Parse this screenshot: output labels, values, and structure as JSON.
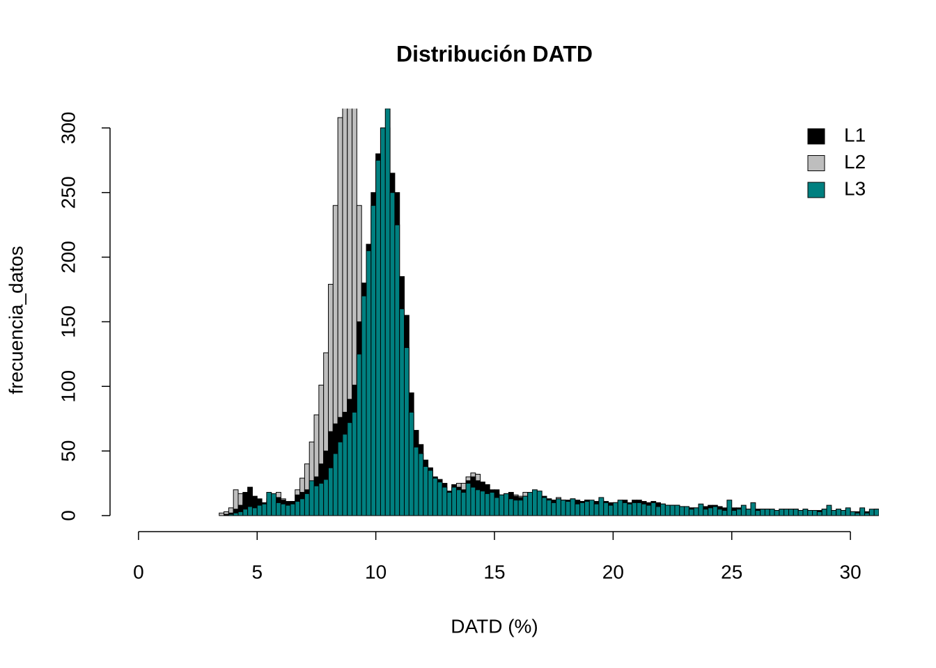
{
  "chart_data": {
    "type": "histogram",
    "title": "Distribución DATD",
    "xlabel": "DATD (%)",
    "ylabel": "frecuencia_datos",
    "xlim": [
      -1.2,
      31.2
    ],
    "ylim": [
      -12.4,
      315
    ],
    "xticks": [
      0,
      5,
      10,
      15,
      20,
      25,
      30
    ],
    "yticks": [
      0,
      50,
      100,
      150,
      200,
      250,
      300
    ],
    "grid": false,
    "legend": "topright",
    "bins": [
      3.4,
      3.6,
      3.8,
      4,
      4.2,
      4.4,
      4.6,
      4.8,
      5,
      5.2,
      5.4,
      5.6,
      5.8,
      6,
      6.2,
      6.4,
      6.6,
      6.8,
      7,
      7.2,
      7.4,
      7.6,
      7.8,
      8,
      8.2,
      8.4,
      8.6,
      8.8,
      9,
      9.2,
      9.4,
      9.6,
      9.8,
      10,
      10.2,
      10.4,
      10.6,
      10.8,
      11,
      11.2,
      11.4,
      11.6,
      11.8,
      12,
      12.2,
      12.4,
      12.6,
      12.8,
      13,
      13.2,
      13.4,
      13.6,
      13.8,
      14,
      14.2,
      14.4,
      14.6,
      14.8,
      15,
      15.2,
      15.4,
      15.6,
      15.8,
      16,
      16.2,
      16.4,
      16.6,
      16.8,
      17,
      17.2,
      17.4,
      17.6,
      17.8,
      18,
      18.2,
      18.4,
      18.6,
      18.8,
      19,
      19.2,
      19.4,
      19.6,
      19.8,
      20,
      20.2,
      20.4,
      20.6,
      20.8,
      21,
      21.2,
      21.4,
      21.6,
      21.8,
      22,
      22.2,
      22.4,
      22.6,
      22.8,
      23,
      23.2,
      23.4,
      23.6,
      23.8,
      24,
      24.2,
      24.4,
      24.6,
      24.8,
      25,
      25.2,
      25.4,
      25.6,
      25.8,
      26,
      26.2,
      26.4,
      26.6,
      26.8,
      27,
      27.2,
      27.4,
      27.6,
      27.8,
      28,
      28.2,
      28.4,
      28.6,
      28.8,
      29,
      29.2,
      29.4,
      29.6,
      29.8,
      30,
      30.2,
      30.4,
      30.6,
      30.8,
      31,
      31.2
    ],
    "series": [
      {
        "name": "L1",
        "color": "#000000",
        "values": [
          0,
          1,
          2,
          5,
          8,
          18,
          22,
          15,
          13,
          10,
          11,
          12,
          14,
          12,
          11,
          11,
          16,
          18,
          20,
          25,
          30,
          40,
          50,
          65,
          71,
          76,
          80,
          90,
          101,
          150,
          180,
          210,
          250,
          280,
          300,
          300,
          265,
          250,
          185,
          155,
          95,
          66,
          55,
          43,
          37,
          30,
          28,
          25,
          19,
          24,
          22,
          20,
          27,
          30,
          27,
          26,
          24,
          20,
          20,
          16,
          17,
          18,
          15,
          14,
          15,
          15,
          14,
          15,
          15,
          13,
          12,
          12,
          12,
          12,
          13,
          12,
          11,
          12,
          11,
          11,
          12,
          11,
          10,
          10,
          11,
          12,
          10,
          12,
          12,
          11,
          10,
          11,
          10,
          9,
          8,
          8,
          8,
          7,
          7,
          6,
          6,
          8,
          7,
          8,
          8,
          7,
          6,
          6,
          6,
          6,
          6,
          5,
          5,
          5,
          5,
          5,
          5,
          4,
          5,
          5,
          5,
          5,
          4,
          5,
          4,
          4,
          4,
          5,
          6,
          4,
          5,
          4,
          5,
          3,
          3,
          5,
          3,
          4,
          5
        ]
      },
      {
        "name": "L2",
        "color": "#bebebe",
        "values": [
          2,
          3,
          6,
          20,
          17,
          10,
          8,
          12,
          10,
          9,
          13,
          15,
          18,
          13,
          9,
          11,
          20,
          29,
          40,
          57,
          78,
          101,
          126,
          179,
          240,
          308,
          330,
          340,
          330,
          240,
          155,
          110,
          80,
          60,
          40,
          30,
          20,
          14,
          10,
          8,
          6,
          5,
          4,
          3,
          3,
          3,
          3,
          3,
          3,
          4,
          25,
          25,
          30,
          33,
          32,
          20,
          18,
          16,
          17,
          15,
          14,
          13,
          16,
          15,
          18,
          17,
          16,
          15,
          14,
          13,
          12,
          14,
          12,
          11,
          12,
          10,
          11,
          12,
          10,
          10,
          11,
          9,
          9,
          10,
          10,
          9,
          8,
          9,
          10,
          9,
          9,
          8,
          9,
          8,
          8,
          8,
          8,
          7,
          6,
          6,
          5,
          6,
          5,
          6,
          5,
          6,
          5,
          5,
          5,
          5,
          5,
          5,
          4,
          5,
          5,
          5,
          4,
          4,
          4,
          4,
          4,
          5,
          4,
          4,
          4,
          4,
          3,
          4,
          4,
          4,
          4,
          3,
          4,
          3,
          3,
          4,
          3,
          3,
          4
        ]
      },
      {
        "name": "L3",
        "color": "#008080",
        "values": [
          0,
          0,
          1,
          2,
          3,
          5,
          7,
          6,
          8,
          9,
          18,
          17,
          10,
          9,
          8,
          9,
          11,
          13,
          17,
          27,
          23,
          25,
          28,
          37,
          48,
          57,
          63,
          72,
          80,
          125,
          170,
          205,
          240,
          275,
          300,
          315,
          250,
          225,
          160,
          130,
          80,
          53,
          48,
          38,
          35,
          29,
          26,
          22,
          18,
          22,
          20,
          18,
          25,
          22,
          20,
          19,
          17,
          18,
          14,
          16,
          17,
          13,
          12,
          12,
          15,
          18,
          20,
          19,
          14,
          12,
          10,
          13,
          12,
          11,
          13,
          9,
          10,
          11,
          12,
          9,
          14,
          10,
          8,
          10,
          12,
          10,
          9,
          10,
          10,
          9,
          8,
          10,
          7,
          9,
          8,
          8,
          8,
          7,
          7,
          5,
          6,
          9,
          5,
          6,
          7,
          5,
          4,
          12,
          4,
          5,
          8,
          5,
          10,
          4,
          5,
          5,
          5,
          4,
          5,
          5,
          5,
          5,
          4,
          5,
          4,
          4,
          3,
          5,
          8,
          4,
          5,
          4,
          6,
          3,
          2,
          6,
          2,
          5,
          5
        ]
      }
    ]
  }
}
